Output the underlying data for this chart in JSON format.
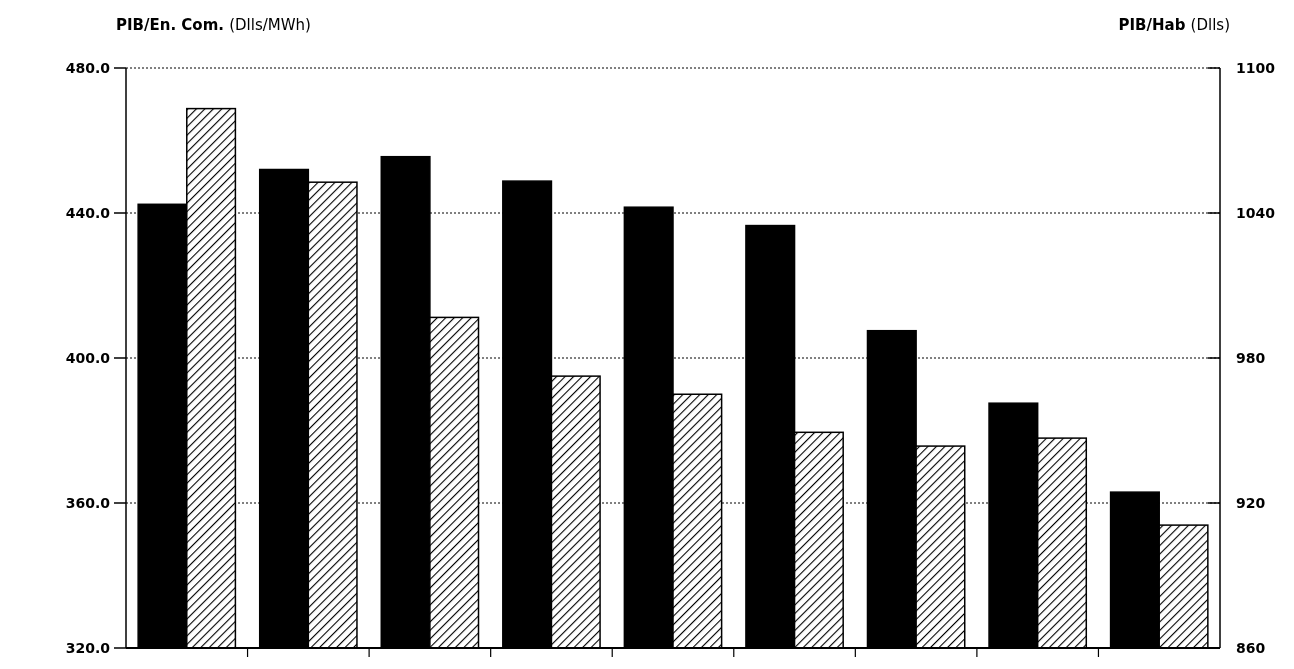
{
  "chart_data": {
    "type": "bar",
    "ylabel": "PIB/En. Com. (Dlls/MWh)",
    "y2label": "PIB/Hab (Dlls)",
    "categories": [
      null,
      null,
      null,
      null,
      null,
      null,
      null,
      null,
      null
    ],
    "series": [
      {
        "color": "#000000",
        "axis": "y2",
        "values": [
          1043.6,
          1058,
          1063.3,
          1053.2,
          1042.4,
          1034.8,
          991.3,
          961.3,
          924.5
        ]
      },
      {
        "color": "#000000",
        "values": [
          468.8,
          448.5,
          411.2,
          395,
          390,
          379.5,
          375.7,
          377.9,
          353.9
        ]
      }
    ],
    "ylim": [
      320,
      480
    ],
    "yticks": [
      {
        "value": 320,
        "label": "320.0"
      },
      {
        "value": 360,
        "label": "360.0"
      },
      {
        "value": 400,
        "label": "400.0"
      },
      {
        "value": 440,
        "label": "440.0"
      },
      {
        "value": 480,
        "label": "480.0"
      }
    ],
    "y2lim": [
      860,
      1100
    ],
    "y2ticks": [
      860,
      920,
      980,
      1040,
      1100
    ],
    "grid": "y"
  }
}
